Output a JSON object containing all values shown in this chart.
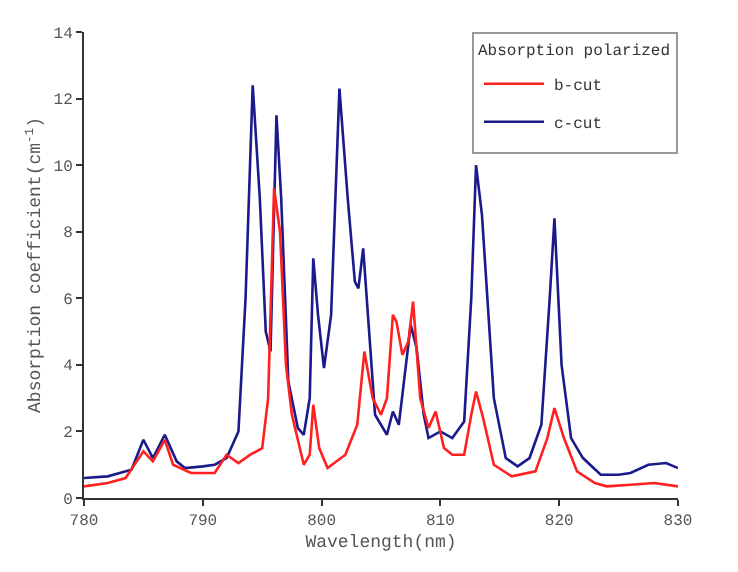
{
  "chart_data": {
    "type": "line",
    "xlabel": "Wavelength(nm)",
    "ylabel": "Absorption coefficient(cm$^{-1}$)",
    "legend_title": "Absorption polarized",
    "xlim": [
      780,
      830
    ],
    "xticks": [
      780,
      790,
      800,
      810,
      820,
      830
    ],
    "ylim": [
      0,
      14
    ],
    "yticks": [
      0,
      2,
      4,
      6,
      8,
      10,
      12,
      14
    ],
    "legend": "top right",
    "series": [
      {
        "name": "b-cut",
        "color": "#ff2020",
        "x": [
          780,
          782,
          783.5,
          785,
          785.8,
          786.8,
          787.5,
          789,
          791,
          792,
          793,
          794,
          795,
          795.5,
          796,
          796.5,
          797,
          797.5,
          798.5,
          799,
          799.3,
          799.8,
          800.5,
          802,
          803,
          803.6,
          804.3,
          805,
          805.5,
          806,
          806.3,
          806.8,
          807.3,
          807.7,
          808.3,
          809,
          809.6,
          810.3,
          811,
          812,
          812.6,
          813,
          813.6,
          814.5,
          816,
          818,
          819,
          819.6,
          820.4,
          821.5,
          823,
          824,
          826,
          828,
          830
        ],
        "values": [
          0.35,
          0.45,
          0.6,
          1.4,
          1.1,
          1.75,
          1.0,
          0.75,
          0.75,
          1.3,
          1.05,
          1.3,
          1.5,
          3,
          9.3,
          8,
          4,
          2.5,
          1.0,
          1.3,
          2.8,
          1.5,
          0.9,
          1.3,
          2.2,
          4.4,
          3,
          2.5,
          3,
          5.5,
          5.3,
          4.3,
          4.7,
          5.9,
          3,
          2.1,
          2.6,
          1.5,
          1.3,
          1.3,
          2.5,
          3.2,
          2.4,
          1.0,
          0.65,
          0.8,
          1.8,
          2.7,
          1.8,
          0.8,
          0.45,
          0.35,
          0.4,
          0.45,
          0.35
        ]
      },
      {
        "name": "c-cut",
        "color": "#1a1a8c",
        "x": [
          780,
          782,
          783,
          784,
          785,
          785.8,
          786.8,
          787.8,
          788.5,
          790,
          791,
          792,
          793,
          793.6,
          794.2,
          794.8,
          795.3,
          795.7,
          796.2,
          796.6,
          797.2,
          798,
          798.5,
          799,
          799.3,
          799.7,
          800.2,
          800.8,
          801.5,
          802.2,
          802.8,
          803.1,
          803.5,
          804,
          804.5,
          805.5,
          806,
          806.5,
          807.5,
          808,
          808.6,
          809,
          810,
          811,
          812,
          812.6,
          813,
          813.5,
          814.5,
          815.5,
          816.5,
          817.5,
          818.5,
          819.2,
          819.6,
          820.2,
          821,
          822,
          823.5,
          825,
          826,
          827.5,
          829,
          830
        ],
        "values": [
          0.6,
          0.65,
          0.75,
          0.85,
          1.75,
          1.2,
          1.9,
          1.1,
          0.9,
          0.95,
          1.0,
          1.2,
          2.0,
          6,
          12.4,
          9,
          5,
          4.4,
          11.5,
          9,
          3.5,
          2.1,
          1.9,
          3,
          7.2,
          5.5,
          3.9,
          5.5,
          12.3,
          9,
          6.5,
          6.3,
          7.5,
          5,
          2.5,
          1.9,
          2.6,
          2.2,
          5.2,
          4.5,
          2.5,
          1.8,
          2.0,
          1.8,
          2.3,
          6,
          10,
          8.5,
          3,
          1.2,
          0.95,
          1.2,
          2.2,
          6,
          8.4,
          4,
          1.8,
          1.2,
          0.7,
          0.7,
          0.75,
          1.0,
          1.05,
          0.9
        ]
      }
    ]
  }
}
